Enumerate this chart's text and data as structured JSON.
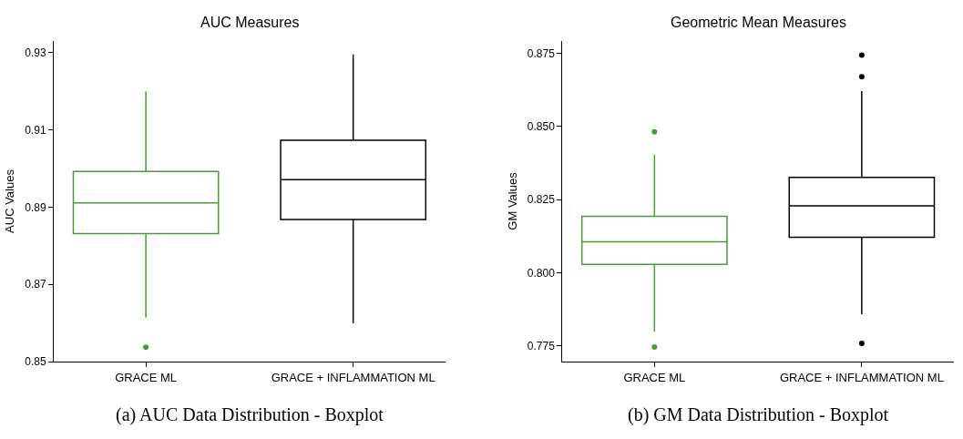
{
  "chart_data": [
    {
      "type": "box",
      "title": "AUC Measures",
      "ylabel": "AUC Values",
      "categories": [
        "GRACE ML",
        "GRACE + INFLAMMATION ML"
      ],
      "colors": [
        "#4a9a3a",
        "#000000"
      ],
      "boxes": [
        {
          "low": 0.8614,
          "q1": 0.8831,
          "median": 0.8911,
          "q3": 0.8992,
          "high": 0.9199,
          "outliers": [
            0.8537
          ]
        },
        {
          "low": 0.8599,
          "q1": 0.8868,
          "median": 0.8971,
          "q3": 0.9073,
          "high": 0.9295
        }
      ],
      "ylim": [
        0.85,
        0.933
      ],
      "yticks": [
        0.85,
        0.87,
        0.89,
        0.91,
        0.93
      ],
      "grid": false,
      "annotations": [
        "(a) AUC Data Distribution - Boxplot"
      ]
    },
    {
      "type": "box",
      "title": "Geometric Mean Measures",
      "ylabel": "GM Values",
      "categories": [
        "GRACE ML",
        "GRACE + INFLAMMATION ML"
      ],
      "colors": [
        "#4a9a3a",
        "#000000"
      ],
      "boxes": [
        {
          "low": 0.7799,
          "q1": 0.8029,
          "median": 0.8106,
          "q3": 0.8193,
          "high": 0.8404,
          "outliers": [
            0.8482,
            0.7747
          ]
        },
        {
          "low": 0.7859,
          "q1": 0.8122,
          "median": 0.8229,
          "q3": 0.8326,
          "high": 0.8621,
          "outliers": [
            0.8744,
            0.867,
            0.7759
          ]
        }
      ],
      "ylim": [
        0.7697,
        0.8792
      ],
      "yticks": [
        {
          "value": 0.775,
          "label": "0.775"
        },
        {
          "value": 0.8,
          "label": "0.800"
        },
        {
          "value": 0.825,
          "label": "0.825"
        },
        {
          "value": 0.85,
          "label": "0.850"
        },
        {
          "value": 0.875,
          "label": "0.875"
        }
      ],
      "grid": false,
      "annotations": [
        "(b) GM Data Distribution - Boxplot"
      ]
    }
  ]
}
